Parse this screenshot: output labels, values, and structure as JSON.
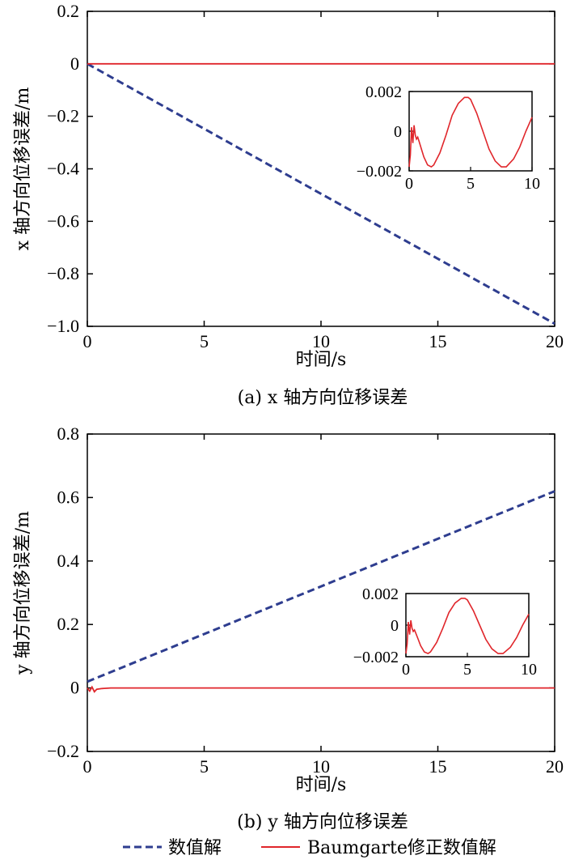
{
  "legend": {
    "numeric_label": "数值解",
    "baumgarte_label": "Baumgarte修正数值解",
    "numeric_color": "#2e3d8f",
    "baumgarte_color": "#e0262b"
  },
  "chart_data": [
    {
      "type": "line",
      "caption": "(a) x 轴方向位移误差",
      "xlabel": "时间/s",
      "ylabel": "x 轴方向位移误差/m",
      "xlim": [
        0,
        20
      ],
      "ylim": [
        -1.0,
        0.2
      ],
      "xticks": [
        "0",
        "5",
        "10",
        "15",
        "20"
      ],
      "yticks": [
        "0.2",
        "0",
        "−0.2",
        "−0.4",
        "−0.6",
        "−0.8",
        "−1.0"
      ],
      "grid": false,
      "series": [
        {
          "name": "数值解",
          "style": "dashed",
          "x": [
            0,
            20
          ],
          "y": [
            0,
            -0.99
          ]
        },
        {
          "name": "Baumgarte修正数值解",
          "style": "solid",
          "x": [
            0,
            5,
            10,
            15,
            20
          ],
          "y": [
            0,
            0,
            0,
            0,
            0
          ]
        }
      ],
      "inset": {
        "xlim": [
          0,
          10
        ],
        "ylim": [
          -0.002,
          0.002
        ],
        "xticks": [
          "0",
          "5",
          "10"
        ],
        "yticks": [
          "0.002",
          "0",
          "−0.002"
        ],
        "x": [
          0,
          0.1,
          0.2,
          0.3,
          0.4,
          0.5,
          0.6,
          0.7,
          0.8,
          1,
          1.2,
          1.5,
          1.8,
          2,
          2.5,
          3,
          3.5,
          4,
          4.5,
          4.8,
          5,
          5.5,
          6,
          6.5,
          7,
          7.5,
          7.9,
          8.5,
          9,
          9.5,
          10
        ],
        "y": [
          -0.0018,
          -0.0012,
          0.0002,
          -0.0006,
          0.0003,
          -0.0002,
          -0.0004,
          -0.0003,
          -0.0005,
          -0.0009,
          -0.0013,
          -0.0017,
          -0.0018,
          -0.0017,
          -0.0011,
          -0.0002,
          0.0008,
          0.0014,
          0.0017,
          0.0017,
          0.0016,
          0.0009,
          0.0,
          -0.0009,
          -0.0015,
          -0.0018,
          -0.0018,
          -0.0014,
          -0.0008,
          0.0,
          0.0007
        ]
      }
    },
    {
      "type": "line",
      "caption": "(b) y 轴方向位移误差",
      "xlabel": "时间/s",
      "ylabel": "y 轴方向位移误差/m",
      "xlim": [
        0,
        20
      ],
      "ylim": [
        -0.2,
        0.8
      ],
      "xticks": [
        "0",
        "5",
        "10",
        "15",
        "20"
      ],
      "yticks": [
        "0.8",
        "0.6",
        "0.4",
        "0.2",
        "0",
        "−0.2"
      ],
      "grid": false,
      "series": [
        {
          "name": "数值解",
          "style": "dashed",
          "x": [
            0,
            20
          ],
          "y": [
            0.02,
            0.62
          ]
        },
        {
          "name": "Baumgarte修正数值解",
          "style": "solid",
          "x": [
            0,
            0.1,
            0.2,
            0.3,
            0.4,
            0.6,
            1,
            5,
            10,
            15,
            20
          ],
          "y": [
            0.0,
            -0.01,
            0.003,
            -0.012,
            -0.004,
            -0.002,
            0,
            0,
            0,
            0,
            0
          ]
        }
      ],
      "inset": {
        "xlim": [
          0,
          10
        ],
        "ylim": [
          -0.002,
          0.002
        ],
        "xticks": [
          "0",
          "5",
          "10"
        ],
        "yticks": [
          "0.002",
          "0",
          "−0.002"
        ],
        "x": [
          0,
          0.1,
          0.2,
          0.3,
          0.4,
          0.5,
          0.6,
          0.7,
          0.8,
          1,
          1.2,
          1.5,
          1.8,
          2,
          2.5,
          3,
          3.5,
          4,
          4.5,
          4.8,
          5,
          5.5,
          6,
          6.5,
          7,
          7.5,
          7.9,
          8.5,
          9,
          9.5,
          10
        ],
        "y": [
          -0.0018,
          -0.0012,
          0.0002,
          -0.0006,
          0.0003,
          -0.0002,
          -0.0004,
          -0.0003,
          -0.0005,
          -0.0009,
          -0.0013,
          -0.0017,
          -0.0018,
          -0.0017,
          -0.0011,
          -0.0002,
          0.0008,
          0.0014,
          0.0017,
          0.0017,
          0.0016,
          0.0009,
          0.0,
          -0.0009,
          -0.0015,
          -0.0018,
          -0.0018,
          -0.0014,
          -0.0008,
          0.0,
          0.0007
        ]
      }
    }
  ]
}
